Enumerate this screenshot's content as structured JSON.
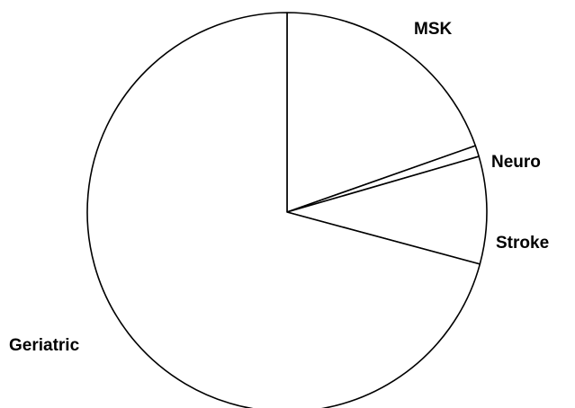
{
  "chart_data": {
    "type": "pie",
    "labels": [
      "MSK",
      "Neuro",
      "Stroke",
      "Geriatric"
    ],
    "values": [
      19.6,
      0.9,
      8.7,
      70.8
    ],
    "start_angle_deg": 0,
    "direction": "clockwise",
    "colors": {
      "fill": "#ffffff",
      "stroke": "#000000"
    },
    "legend": "none"
  }
}
